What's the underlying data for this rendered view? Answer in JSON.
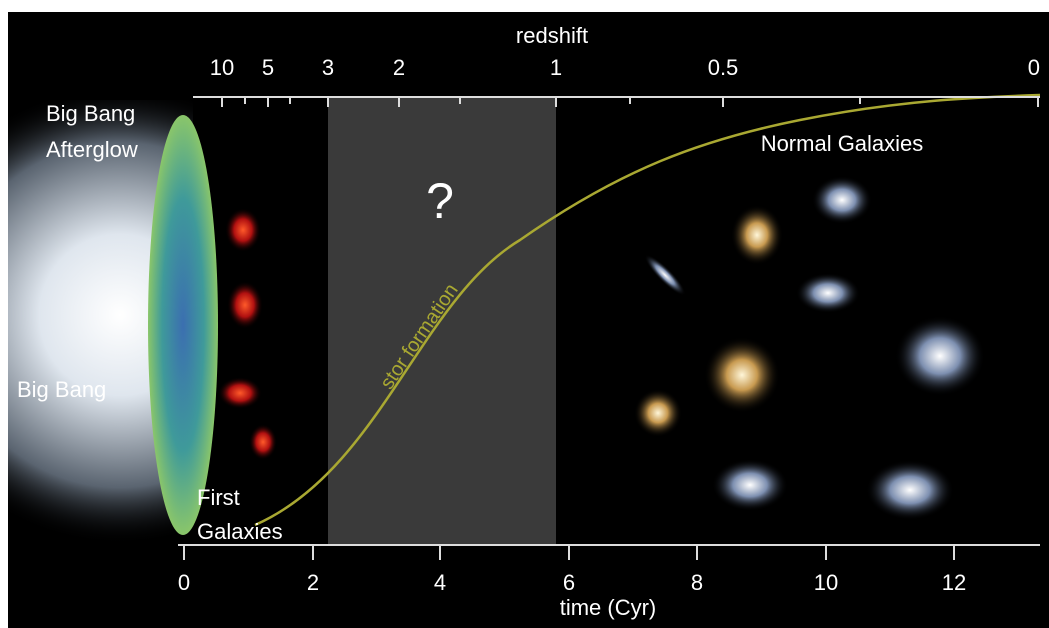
{
  "top_axis": {
    "label": "redshift",
    "ticks": [
      "10",
      "5",
      "3",
      "2",
      "1",
      "0.5",
      "0"
    ]
  },
  "bottom_axis": {
    "label": "time (Cyr)",
    "ticks": [
      "0",
      "2",
      "4",
      "6",
      "8",
      "10",
      "12"
    ]
  },
  "annotations": {
    "afterglow": [
      "Big Bang",
      "Afterglow"
    ],
    "big_bang": "Big Bang",
    "first_galaxies": [
      "First",
      "Galaxies"
    ],
    "unknown": "?",
    "curve": "stor formation",
    "normal_galaxies": "Normal Galaxies"
  }
}
